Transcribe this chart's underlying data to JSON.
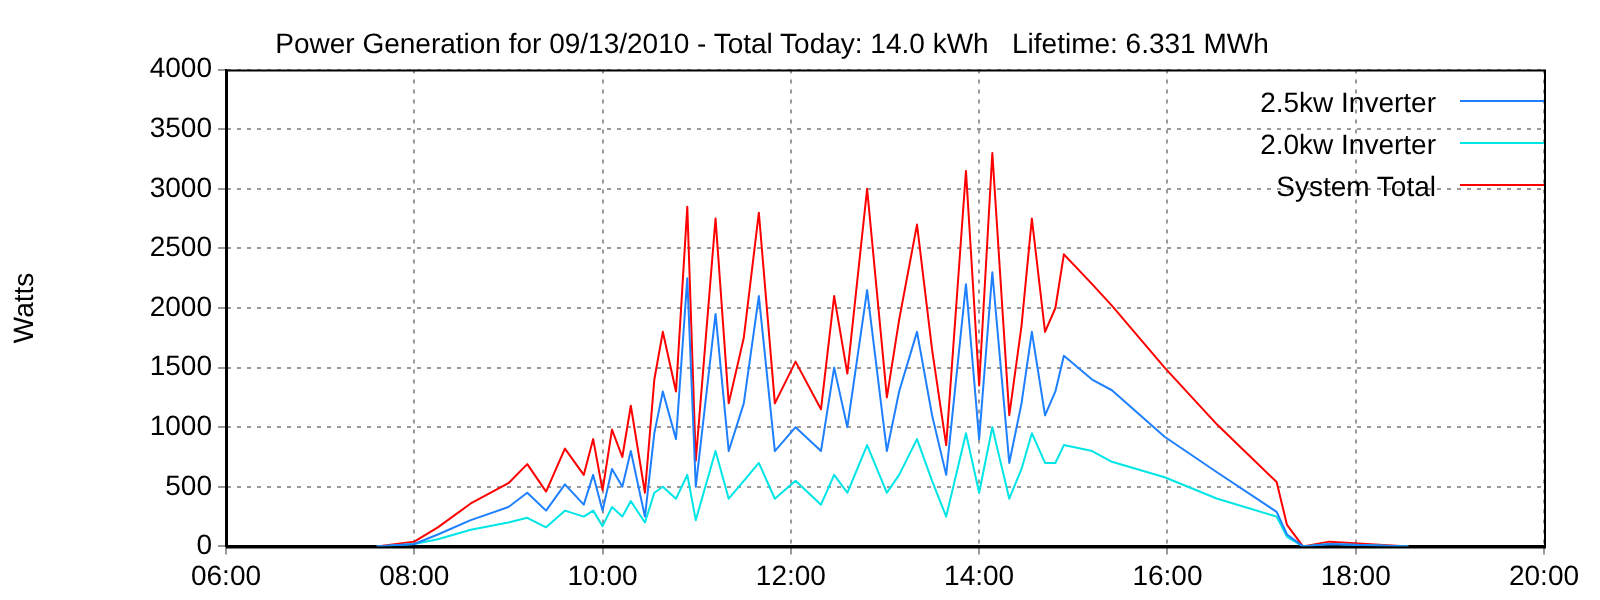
{
  "chart_data": {
    "type": "line",
    "title": "Power Generation for 09/13/2010 - Total Today: 14.0 kWh   Lifetime: 6.331 MWh",
    "ylabel": "Watts",
    "x": [
      7.6,
      8.0,
      8.25,
      8.6,
      9.0,
      9.2,
      9.4,
      9.6,
      9.8,
      9.9,
      10.0,
      10.1,
      10.21,
      10.3,
      10.45,
      10.55,
      10.64,
      10.78,
      10.9,
      10.99,
      11.2,
      11.34,
      11.5,
      11.66,
      11.83,
      12.05,
      12.32,
      12.46,
      12.6,
      12.81,
      13.02,
      13.15,
      13.34,
      13.5,
      13.65,
      13.86,
      14.0,
      14.14,
      14.32,
      14.45,
      14.56,
      14.7,
      14.81,
      14.9,
      15.2,
      15.41,
      15.97,
      16.53,
      17.16,
      17.27,
      17.44,
      17.72,
      18.56
    ],
    "series": [
      {
        "name": "2.5kw Inverter",
        "color": "#1e80ff",
        "values": [
          0,
          20,
          100,
          220,
          330,
          450,
          300,
          520,
          350,
          600,
          300,
          650,
          500,
          800,
          250,
          950,
          1300,
          900,
          2250,
          500,
          1950,
          800,
          1200,
          2100,
          800,
          1000,
          800,
          1500,
          1000,
          2150,
          800,
          1300,
          1800,
          1100,
          600,
          2200,
          900,
          2300,
          700,
          1200,
          1800,
          1100,
          1300,
          1600,
          1400,
          1310,
          920,
          620,
          290,
          100,
          0,
          20,
          0
        ]
      },
      {
        "name": "2.0kw Inverter",
        "color": "#00e5e5",
        "values": [
          0,
          20,
          60,
          140,
          200,
          240,
          160,
          300,
          250,
          300,
          170,
          330,
          250,
          380,
          200,
          450,
          500,
          400,
          600,
          220,
          800,
          400,
          550,
          700,
          400,
          550,
          350,
          600,
          450,
          850,
          450,
          600,
          900,
          550,
          250,
          950,
          450,
          1000,
          400,
          650,
          950,
          700,
          700,
          850,
          800,
          710,
          580,
          400,
          250,
          80,
          0,
          20,
          0
        ]
      },
      {
        "name": "System Total",
        "color": "#ff0000",
        "values": [
          0,
          40,
          160,
          360,
          530,
          690,
          460,
          820,
          600,
          900,
          470,
          980,
          750,
          1180,
          450,
          1400,
          1800,
          1300,
          2850,
          720,
          2750,
          1200,
          1750,
          2800,
          1200,
          1550,
          1150,
          2100,
          1450,
          3000,
          1250,
          1900,
          2700,
          1650,
          850,
          3150,
          1350,
          3300,
          1100,
          1850,
          2750,
          1800,
          2000,
          2450,
          2200,
          2020,
          1500,
          1020,
          540,
          180,
          0,
          40,
          0
        ]
      }
    ],
    "xlim": [
      6,
      20
    ],
    "xticks": [
      {
        "value": 6,
        "label": "06:00"
      },
      {
        "value": 8,
        "label": "08:00"
      },
      {
        "value": 10,
        "label": "10:00"
      },
      {
        "value": 12,
        "label": "12:00"
      },
      {
        "value": 14,
        "label": "14:00"
      },
      {
        "value": 16,
        "label": "16:00"
      },
      {
        "value": 18,
        "label": "18:00"
      },
      {
        "value": 20,
        "label": "20:00"
      }
    ],
    "ylim": [
      0,
      4000
    ],
    "yticks": [
      0,
      500,
      1000,
      1500,
      2000,
      2500,
      3000,
      3500,
      4000
    ],
    "grid": true,
    "legend": "top right",
    "marker": "none",
    "line_style": "solid"
  }
}
